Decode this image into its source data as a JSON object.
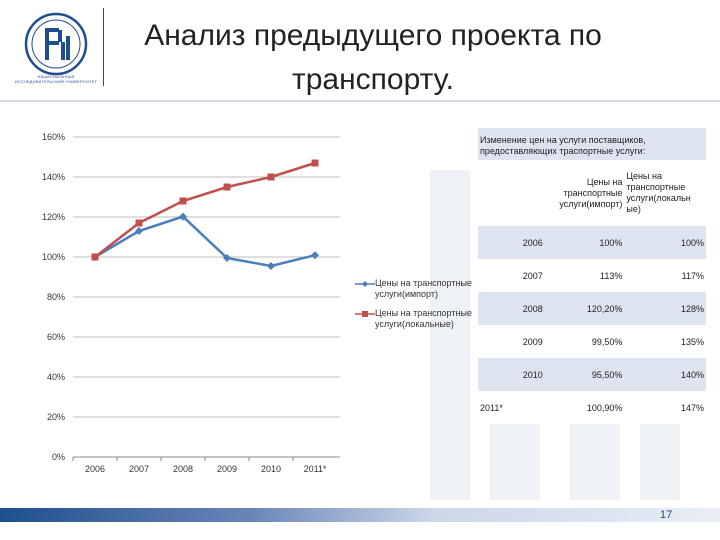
{
  "slide": {
    "title_line1": "Анализ предыдущего проекта по",
    "title_line2": "транспорту.",
    "page_number": "17",
    "logo_caption": "НАЦИОНАЛЬНЫЙ ИССЛЕДОВАТЕЛЬСКИЙ УНИВЕРСИТЕТ",
    "colors": {
      "brand": "#1f4e8f",
      "series1": "#4a7ebf",
      "series2": "#c0504d",
      "table_row": "#dde4ef"
    }
  },
  "chart_data": {
    "type": "line",
    "x": [
      "2006",
      "2007",
      "2008",
      "2009",
      "2010",
      "2011*"
    ],
    "ylim": [
      0,
      160
    ],
    "yticks": [
      "0%",
      "20%",
      "40%",
      "60%",
      "80%",
      "100%",
      "120%",
      "140%",
      "160%"
    ],
    "ytick_values": [
      0,
      20,
      40,
      60,
      80,
      100,
      120,
      140,
      160
    ],
    "legend_position": "right",
    "grid": true,
    "series": [
      {
        "name": "Цены на транспортные услуги(импорт)",
        "color": "#4a7ebf",
        "marker": "diamond",
        "values": [
          100,
          113,
          120.2,
          99.5,
          95.5,
          100.9
        ]
      },
      {
        "name": "Цены на транспортные услуги(локальные)",
        "color": "#c0504d",
        "marker": "square",
        "values": [
          100,
          117,
          128,
          135,
          140,
          147
        ]
      }
    ],
    "legend_lines": [
      [
        "Цены на транспортные",
        "услуги(импорт)"
      ],
      [
        "Цены на транспортные",
        "услуги(локальные)"
      ]
    ]
  },
  "price_table": {
    "caption_line1": "Изменение цен на услуги поставщиков,",
    "caption_line2": "предоставляющих траспортные услуги:",
    "col1_header_lines": [
      "Цены на",
      "транспортные",
      "услуги(импорт)"
    ],
    "col2_header_lines": [
      "Цены на",
      "транспортные",
      "услуги(локальн",
      "ые)"
    ],
    "rows": [
      {
        "year": "2006",
        "import": "100%",
        "local": "100%"
      },
      {
        "year": "2007",
        "import": "113%",
        "local": "117%"
      },
      {
        "year": "2008",
        "import": "120,20%",
        "local": "128%"
      },
      {
        "year": "2009",
        "import": "99,50%",
        "local": "135%"
      },
      {
        "year": "2010",
        "import": "95,50%",
        "local": "140%"
      },
      {
        "year": "2011*",
        "import": "100,90%",
        "local": "147%"
      }
    ]
  }
}
